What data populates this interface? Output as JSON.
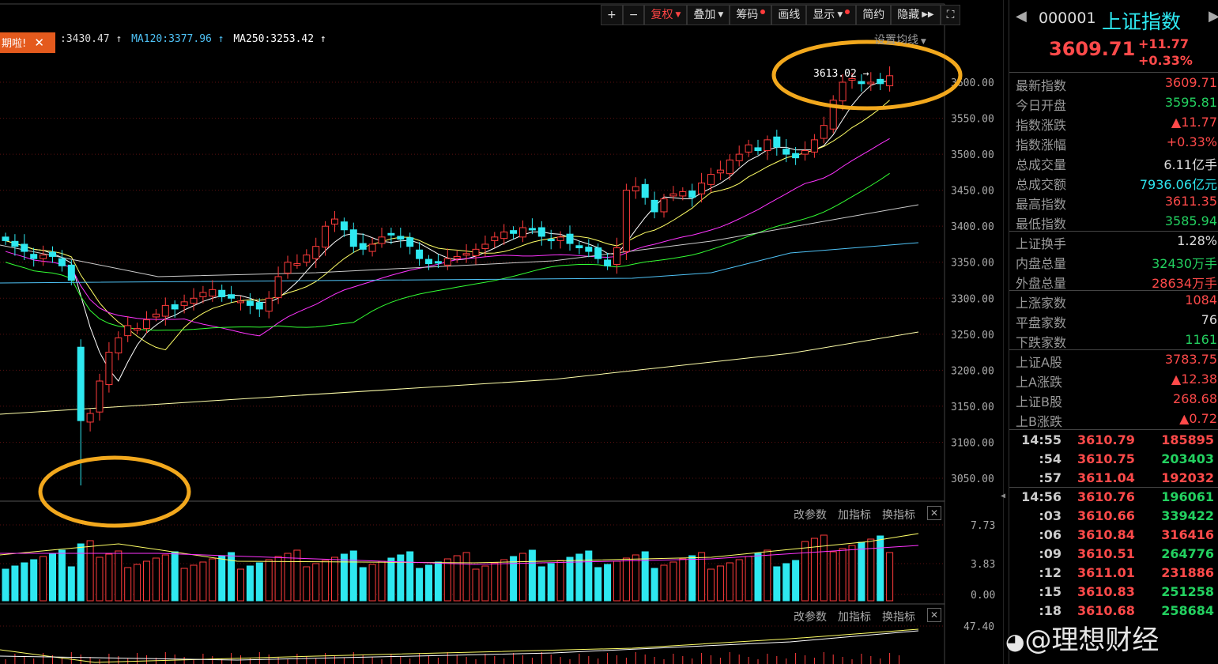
{
  "toolbar": {
    "plus": "+",
    "minus": "−",
    "fuquan": "复权",
    "diejia": "叠加",
    "chouma": "筹码",
    "huaxian": "画线",
    "xianshi": "显示",
    "jianyue": "简约",
    "yincang": "隐藏"
  },
  "promo": {
    "text": "期啦!"
  },
  "ma_legend": [
    {
      "text": ":3430.47 ↑",
      "color": "#dddddd"
    },
    {
      "text": "MA120:3377.96 ↑",
      "color": "#4fc3f7"
    },
    {
      "text": "MA250:3253.42 ↑",
      "color": "#ffffff"
    }
  ],
  "ma_settings": "设置均线",
  "high_label": "3613.02",
  "price_axis": [
    "3600.00",
    "3550.00",
    "3500.00",
    "3450.00",
    "3400.00",
    "3350.00",
    "3300.00",
    "3250.00",
    "3200.00",
    "3150.00",
    "3100.00",
    "3050.00"
  ],
  "volume_panel": {
    "buttons": [
      "改参数",
      "加指标",
      "换指标"
    ],
    "axis": [
      "7.73",
      "3.83",
      "0.00"
    ]
  },
  "indicator_panel": {
    "buttons": [
      "改参数",
      "加指标",
      "换指标"
    ],
    "axis": [
      "47.40"
    ]
  },
  "quote": {
    "code": "000001",
    "name": "上证指数",
    "price": "3609.71",
    "change": "+11.77",
    "pct": "+0.33%",
    "rows": [
      {
        "label": "最新指数",
        "value": "3609.71",
        "color": "r"
      },
      {
        "label": "今日开盘",
        "value": "3595.81",
        "color": "g"
      },
      {
        "label": "指数涨跌",
        "value": "▲11.77",
        "color": "r"
      },
      {
        "label": "指数涨幅",
        "value": "+0.33%",
        "color": "r"
      },
      {
        "label": "总成交量",
        "value": "6.11亿手",
        "color": "w"
      },
      {
        "label": "总成交额",
        "value": "7936.06亿元",
        "color": "c"
      },
      {
        "label": "最高指数",
        "value": "3611.35",
        "color": "r"
      },
      {
        "label": "最低指数",
        "value": "3585.94",
        "color": "g"
      },
      {
        "label": "上证换手",
        "value": "1.28%",
        "color": "w"
      },
      {
        "label": "内盘总量",
        "value": "32430万手",
        "color": "g"
      },
      {
        "label": "外盘总量",
        "value": "28634万手",
        "color": "r"
      },
      {
        "label": "上涨家数",
        "value": "1084",
        "color": "r"
      },
      {
        "label": "平盘家数",
        "value": "76",
        "color": "w"
      },
      {
        "label": "下跌家数",
        "value": "1161",
        "color": "g"
      },
      {
        "label": "上证A股",
        "value": "3783.75",
        "color": "r"
      },
      {
        "label": "上A涨跌",
        "value": "▲12.38",
        "color": "r"
      },
      {
        "label": "上证B股",
        "value": "268.68",
        "color": "r"
      },
      {
        "label": "上B涨跌",
        "value": "▲0.72",
        "color": "r"
      }
    ]
  },
  "ticks": [
    {
      "time": "14:55",
      "price": "3610.79",
      "vol": "185895",
      "vcolor": "r"
    },
    {
      "time": ":54",
      "price": "3610.75",
      "vol": "203403",
      "vcolor": "g"
    },
    {
      "time": ":57",
      "price": "3611.04",
      "vol": "192032",
      "vcolor": "r"
    },
    {
      "time": "14:56",
      "price": "3610.76",
      "vol": "196061",
      "vcolor": "g"
    },
    {
      "time": ":03",
      "price": "3610.66",
      "vol": "339422",
      "vcolor": "g"
    },
    {
      "time": ":06",
      "price": "3610.84",
      "vol": "316416",
      "vcolor": "r"
    },
    {
      "time": ":09",
      "price": "3610.51",
      "vol": "264776",
      "vcolor": "g"
    },
    {
      "time": ":12",
      "price": "3611.01",
      "vol": "231886",
      "vcolor": "r"
    },
    {
      "time": ":15",
      "price": "3610.83",
      "vol": "251258",
      "vcolor": "g"
    },
    {
      "time": ":18",
      "price": "3610.68",
      "vol": "258684",
      "vcolor": "g"
    }
  ],
  "watermark": "@理想财经"
}
